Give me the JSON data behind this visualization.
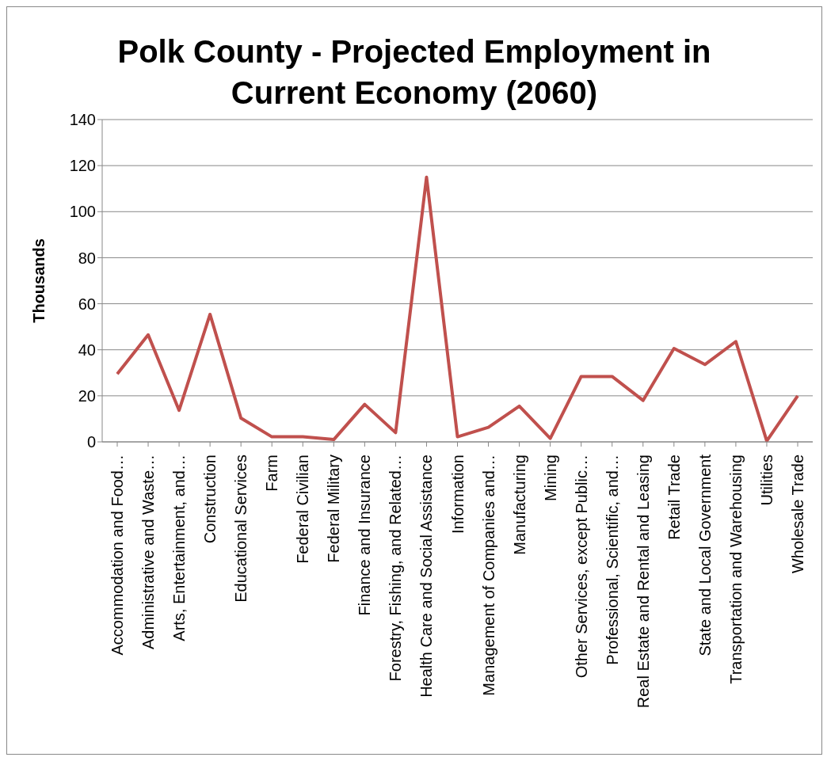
{
  "chart_data": {
    "type": "line",
    "title": "Polk County - Projected Employment in Current Economy (2060)",
    "ylabel": "Thousands",
    "categories": [
      "Accommodation and Food…",
      "Administrative and Waste…",
      "Arts, Entertainment, and…",
      "Construction",
      "Educational Services",
      "Farm",
      "Federal Civilian",
      "Federal Military",
      "Finance and Insurance",
      "Forestry, Fishing, and Related…",
      "Health Care and Social Assistance",
      "Information",
      "Management of Companies and…",
      "Manufacturing",
      "Mining",
      "Other Services, except Public…",
      "Professional, Scientific, and…",
      "Real Estate and Rental and Leasing",
      "Retail Trade",
      "State and Local Government",
      "Transportation and Warehousing",
      "Utilities",
      "Wholesale Trade"
    ],
    "series": [
      {
        "color": "#c0504d",
        "values": [
          29.5,
          46.5,
          13.7,
          55.4,
          10.3,
          2.2,
          2.2,
          1,
          16.3,
          4,
          115,
          2.2,
          6.3,
          15.5,
          1.5,
          28.4,
          28.4,
          18,
          40.6,
          33.6,
          43.6,
          0.4,
          20
        ]
      }
    ],
    "ylim": [
      0,
      140
    ],
    "yticks": [
      0,
      20,
      40,
      60,
      80,
      100,
      120,
      140
    ],
    "grid": "y",
    "marker": "none",
    "line_style": "solid"
  }
}
